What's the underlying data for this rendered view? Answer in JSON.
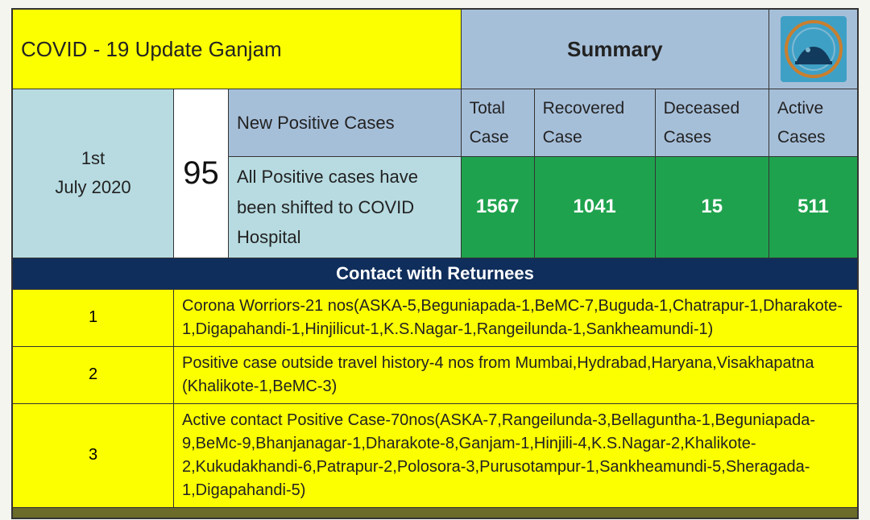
{
  "header": {
    "title": "COVID - 19 Update Ganjam",
    "summary_label": "Summary"
  },
  "date": {
    "line1": "1st",
    "line2": "July 2020"
  },
  "positive": {
    "count": "95",
    "label": "New Positive Cases",
    "note": "All Positive cases have been shifted to COVID Hospital"
  },
  "summary_cols": {
    "total_h": "Total Case",
    "recovered_h": "Recovered Case",
    "deceased_h": "Deceased Cases",
    "active_h": "Active Cases",
    "total_v": "1567",
    "recovered_v": "1041",
    "deceased_v": "15",
    "active_v": "511"
  },
  "band": "Contact with Returnees",
  "rows": [
    {
      "idx": "1",
      "text": "Corona Worriors-21 nos(ASKA-5,Beguniapada-1,BeMC-7,Buguda-1,Chatrapur-1,Dharakote-1,Digapahandi-1,Hinjilicut-1,K.S.Nagar-1,Rangeilunda-1,Sankheamundi-1)"
    },
    {
      "idx": "2",
      "text": "Positive case outside travel history-4 nos from Mumbai,Hydrabad,Haryana,Visakhapatna (Khalikote-1,BeMC-3)"
    },
    {
      "idx": "3",
      "text": "Active contact Positive Case-70nos(ASKA-7,Rangeilunda-3,Bellaguntha-1,Beguniapada-9,BeMc-9,Bhanjanagar-1,Dharakote-8,Ganjam-1,Hinjili-4,K.S.Nagar-2,Khalikote-2,Kukudakhandi-6,Patrapur-2,Polosora-3,Purusotampur-1,Sankheamundi-5,Sheragada-1,Digapahandi-5)"
    }
  ],
  "colors": {
    "yellow": "#fcff00",
    "lightblue": "#a6bfd9",
    "paleteal": "#b7dbe1",
    "green": "#1fa24d",
    "navy": "#0f2e5c",
    "border": "#333333",
    "logo_bg": "#3fa0c6",
    "logo_ring": "#c97f2f"
  }
}
